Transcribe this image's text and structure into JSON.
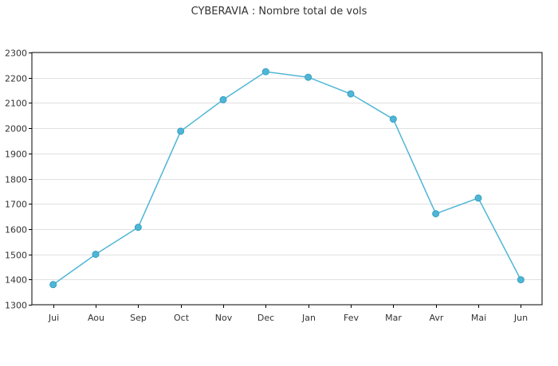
{
  "chart_data": {
    "type": "line",
    "title": "CYBERAVIA : Nombre total de vols",
    "xlabel": "",
    "ylabel": "",
    "categories": [
      "Jui",
      "Aou",
      "Sep",
      "Oct",
      "Nov",
      "Dec",
      "Jan",
      "Fev",
      "Mar",
      "Avr",
      "Mai",
      "Jun"
    ],
    "series": [
      {
        "values": [
          1380,
          1500,
          1607,
          1988,
          2113,
          2224,
          2202,
          2136,
          2036,
          1661,
          1723,
          1399
        ],
        "color": "#4eb6d6"
      }
    ],
    "ylim": [
      1300,
      2300
    ],
    "yticks": [
      1300,
      1400,
      1500,
      1600,
      1700,
      1800,
      1900,
      2000,
      2100,
      2200,
      2300
    ],
    "grid": true,
    "legend": "none"
  }
}
